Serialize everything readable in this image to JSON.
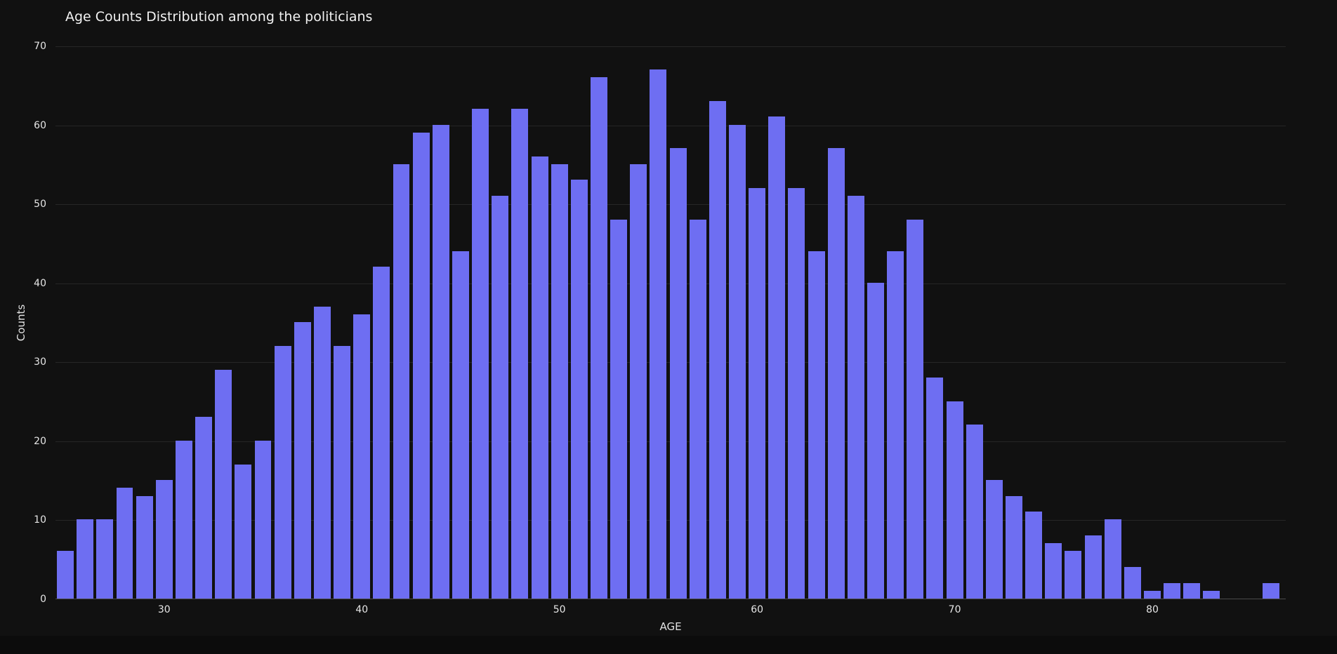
{
  "chart_data": {
    "type": "bar",
    "title": "Age Counts Distribution among the politicians",
    "xlabel": "AGE",
    "ylabel": "Counts",
    "x": [
      25,
      26,
      27,
      28,
      29,
      30,
      31,
      32,
      33,
      34,
      35,
      36,
      37,
      38,
      39,
      40,
      41,
      42,
      43,
      44,
      45,
      46,
      47,
      48,
      49,
      50,
      51,
      52,
      53,
      54,
      55,
      56,
      57,
      58,
      59,
      60,
      61,
      62,
      63,
      64,
      65,
      66,
      67,
      68,
      69,
      70,
      71,
      72,
      73,
      74,
      75,
      76,
      77,
      78,
      79,
      80,
      81,
      82,
      83,
      84,
      85,
      86
    ],
    "values": [
      6,
      10,
      10,
      14,
      13,
      15,
      20,
      23,
      29,
      17,
      20,
      32,
      35,
      37,
      32,
      36,
      42,
      55,
      59,
      60,
      44,
      62,
      51,
      62,
      56,
      55,
      53,
      66,
      48,
      55,
      67,
      57,
      48,
      63,
      60,
      52,
      61,
      52,
      44,
      57,
      51,
      40,
      44,
      48,
      28,
      25,
      22,
      15,
      13,
      11,
      7,
      6,
      8,
      10,
      4,
      1,
      2,
      2,
      1,
      0,
      0,
      2
    ],
    "xlim": [
      24.5,
      86.75
    ],
    "ylim": [
      0,
      70
    ],
    "yticks": [
      0,
      10,
      20,
      30,
      40,
      50,
      60,
      70
    ],
    "xticks": [
      30,
      40,
      50,
      60,
      70,
      80
    ],
    "grid": true,
    "legend_position": "none",
    "bar_color": "#6e6ef2",
    "background": "#111111",
    "grid_color": "#262626",
    "axis_line_color": "#4a4a4a",
    "text_color": "#e6e6e6"
  }
}
